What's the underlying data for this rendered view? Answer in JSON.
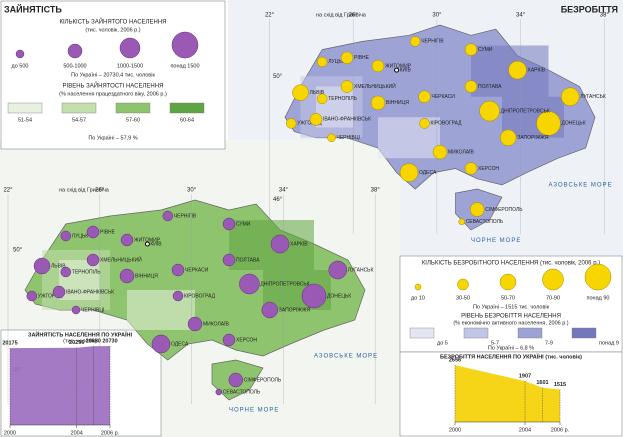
{
  "employment": {
    "title": "ЗАЙНЯТІСТЬ",
    "count_legend": {
      "title": "КІЛЬКІСТЬ ЗАЙНЯТОГО НАСЕЛЕННЯ",
      "subtitle": "(тис. чоловік, 2006 р.)",
      "classes": [
        "до 500",
        "500-1000",
        "1000-1500",
        "понад 1500"
      ],
      "note": "По Україні – 20730,4 тис. чоловік"
    },
    "level_legend": {
      "title": "РІВЕНЬ ЗАЙНЯТОСТІ НАСЕЛЕННЯ",
      "subtitle": "(% населення працездатного віку, 2006 р.)",
      "classes": [
        "51-54",
        "54-57",
        "57-60",
        "60-64"
      ],
      "colors": [
        "#e8f1df",
        "#c3dfae",
        "#8fc46e",
        "#5fa442"
      ],
      "note": "По Україні – 57,9 %"
    }
  },
  "unemployment": {
    "title": "БЕЗРОБІТТЯ",
    "count_legend": {
      "title": "КІЛЬКІСТЬ БЕЗРОБІТНОГО НАСЕЛЕННЯ (тис. чоловік, 2006 р.)",
      "classes": [
        "до 10",
        "30-50",
        "50-70",
        "70-90",
        "понад 90"
      ],
      "note": "По Україні – 1515 тис. чоловік"
    },
    "level_legend": {
      "title": "РІВЕНЬ БЕЗРОБІТТЯ НАСЕЛЕННЯ",
      "subtitle": "(% економічно активного населення, 2006 р.)",
      "classes": [
        "до 5",
        "5-7",
        "7-9",
        "понад 9"
      ],
      "colors": [
        "#e4e6f3",
        "#c2c6e6",
        "#9ea3d6",
        "#7378bd"
      ],
      "note": "По Україні – 6,8 %"
    }
  },
  "map": {
    "meridian_note": "на схід від Гринвіча",
    "longitudes": [
      "22°",
      "26°",
      "30°",
      "34°",
      "38°"
    ],
    "latitudes": [
      "50°",
      "46°"
    ],
    "seas": [
      "ЧОРНЕ МОРЕ",
      "АЗОВСЬКЕ МОРЕ"
    ],
    "capital": "КИЇВ",
    "cities": [
      "ЛУЦЬК",
      "РІВНЕ",
      "ЖИТОМИР",
      "ЧЕРНІГІВ",
      "СУМИ",
      "ХАРКІВ",
      "ЛУГАНСЬК",
      "ДОНЕЦЬК",
      "ЗАПОРІЖЖЯ",
      "ДНІПРОПЕТРОВСЬК",
      "ПОЛТАВА",
      "ЧЕРКАСИ",
      "КІРОВОГРАД",
      "МИКОЛАЇВ",
      "ХЕРСОН",
      "ОДЕСА",
      "ВІННИЦЯ",
      "ХМЕЛЬНИЦЬКИЙ",
      "ТЕРНОПІЛЬ",
      "ЛЬВІВ",
      "УЖГОРОД",
      "ІВАНО-ФРАНКІВСЬК",
      "ЧЕРНІВЦІ",
      "СІМФЕРОПОЛЬ",
      "СЕВАСТОПОЛЬ"
    ]
  },
  "chart_data": [
    {
      "type": "area",
      "title": "ЗАЙНЯТІСТЬ НАСЕЛЕННЯ ПО УКРАЇНІ",
      "subtitle": "(тис. чоловік)",
      "x": [
        2000,
        2004,
        2005,
        2006
      ],
      "values": [
        20175,
        20296,
        20680,
        20730
      ],
      "color": "#9b6bbf",
      "xlim": [
        2000,
        2006
      ],
      "xticks": [
        2000,
        2004,
        {
          "value": 2006,
          "label": "2006 р."
        }
      ],
      "ylim": [
        0,
        21000
      ]
    },
    {
      "type": "area",
      "title": "БЕЗРОБІТТЯ НАСЕЛЕННЯ ПО УКРАЇНІ (тис. чоловік)",
      "x": [
        2000,
        2004,
        2005,
        2006
      ],
      "values": [
        2656,
        1907,
        1601,
        1515
      ],
      "color": "#f5d000",
      "xlim": [
        2000,
        2006
      ],
      "xticks": [
        2000,
        2004,
        {
          "value": 2006,
          "label": "2006 р."
        }
      ],
      "ylim": [
        0,
        2800
      ]
    }
  ]
}
